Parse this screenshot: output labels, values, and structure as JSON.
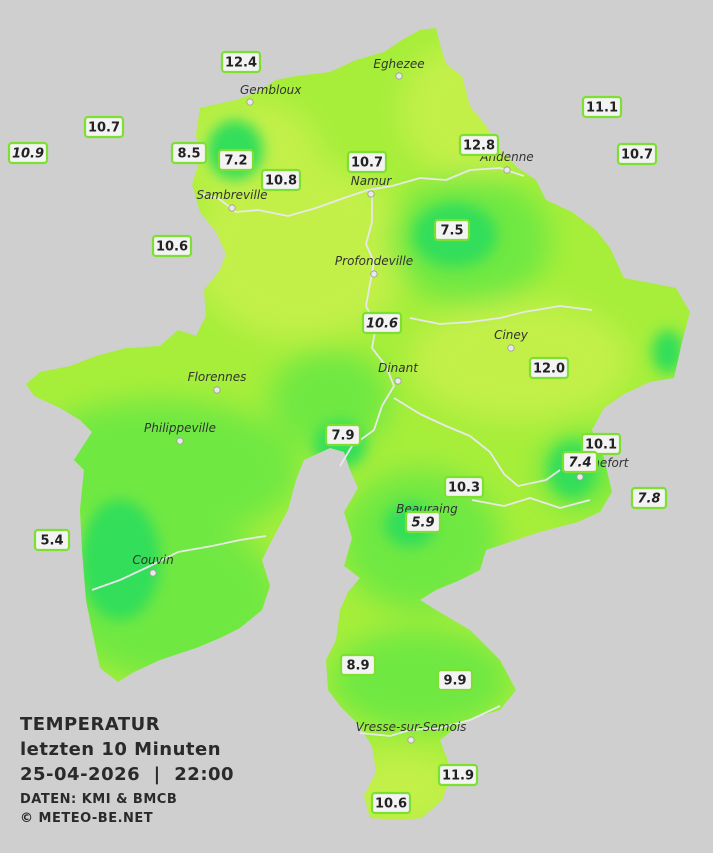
{
  "colors": {
    "background": "#cfcfcf",
    "warm": "#c2f04a",
    "mid": "#a6ee3a",
    "cool": "#6fe842",
    "cold": "#3fe14d",
    "coldest": "#33de5a",
    "river": "#e8e8e8",
    "box_border": "#7de030"
  },
  "legend": {
    "title": "TEMPERATUR",
    "line2": "letzten 10 Minuten",
    "line3": "25-04-2026  |  22:00",
    "source": "DATEN: KMI & BMCB",
    "copyright": "© METEO-BE.NET"
  },
  "towns": [
    {
      "name": "Eghezee"
    },
    {
      "name": "Gembloux"
    },
    {
      "name": "Andenne"
    },
    {
      "name": "Namur"
    },
    {
      "name": "Sambreville"
    },
    {
      "name": "Profondeville"
    },
    {
      "name": "Ciney"
    },
    {
      "name": "Dinant"
    },
    {
      "name": "Florennes"
    },
    {
      "name": "Philippeville"
    },
    {
      "name": "Rochefort"
    },
    {
      "name": "Beauraing"
    },
    {
      "name": "Couvin"
    },
    {
      "name": "Vresse-sur-Semois"
    }
  ],
  "stations": [
    {
      "value": "12.4",
      "italic": false
    },
    {
      "value": "11.1",
      "italic": false
    },
    {
      "value": "10.7",
      "italic": false
    },
    {
      "value": "10.9",
      "italic": true
    },
    {
      "value": "8.5",
      "italic": false
    },
    {
      "value": "7.2",
      "italic": false
    },
    {
      "value": "10.8",
      "italic": false
    },
    {
      "value": "10.7",
      "italic": false
    },
    {
      "value": "12.8",
      "italic": false
    },
    {
      "value": "10.7",
      "italic": false
    },
    {
      "value": "10.6",
      "italic": false
    },
    {
      "value": "7.5",
      "italic": false
    },
    {
      "value": "10.6",
      "italic": true
    },
    {
      "value": "12.0",
      "italic": false
    },
    {
      "value": "7.9",
      "italic": false
    },
    {
      "value": "10.1",
      "italic": false
    },
    {
      "value": "7.4",
      "italic": true
    },
    {
      "value": "10.3",
      "italic": false
    },
    {
      "value": "7.8",
      "italic": true
    },
    {
      "value": "5.9",
      "italic": true
    },
    {
      "value": "5.4",
      "italic": false
    },
    {
      "value": "8.9",
      "italic": false
    },
    {
      "value": "9.9",
      "italic": false
    },
    {
      "value": "11.9",
      "italic": false
    },
    {
      "value": "10.6",
      "italic": false
    }
  ]
}
